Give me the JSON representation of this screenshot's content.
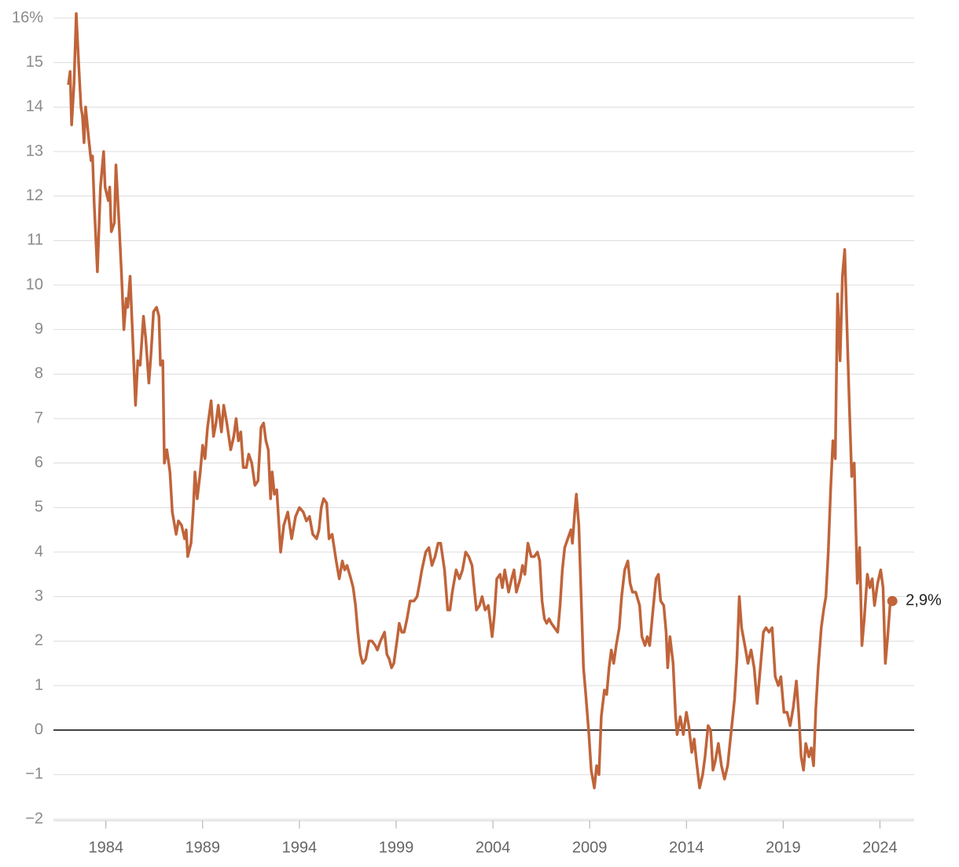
{
  "chart_data": {
    "type": "line",
    "xlim": [
      1981.29,
      2025.77
    ],
    "ylim": [
      -2,
      16
    ],
    "xticks": [
      1984,
      1989,
      1994,
      1999,
      2004,
      2009,
      2014,
      2019,
      2024
    ],
    "yticks": [
      {
        "value": -2,
        "label": "−2"
      },
      {
        "value": -1,
        "label": "−1"
      },
      0,
      1,
      2,
      3,
      4,
      5,
      6,
      7,
      8,
      9,
      10,
      11,
      12,
      13,
      14,
      15,
      {
        "value": 16,
        "label": "16%"
      }
    ],
    "grid": true,
    "x": [
      1982.06,
      1982.15,
      1982.23,
      1982.35,
      1982.47,
      1982.59,
      1982.71,
      1982.79,
      1982.87,
      1982.95,
      1983.11,
      1983.23,
      1983.31,
      1983.4,
      1983.56,
      1983.72,
      1983.88,
      1983.96,
      1984.12,
      1984.2,
      1984.28,
      1984.44,
      1984.52,
      1984.69,
      1984.81,
      1984.93,
      1985.05,
      1985.13,
      1985.25,
      1985.37,
      1985.53,
      1985.65,
      1985.77,
      1985.94,
      1986.06,
      1986.22,
      1986.34,
      1986.46,
      1986.62,
      1986.74,
      1986.82,
      1986.94,
      1987.02,
      1987.15,
      1987.31,
      1987.43,
      1987.63,
      1987.75,
      1987.91,
      1988.07,
      1988.15,
      1988.23,
      1988.4,
      1988.52,
      1988.6,
      1988.72,
      1988.88,
      1989.0,
      1989.12,
      1989.25,
      1989.44,
      1989.56,
      1989.69,
      1989.81,
      1989.97,
      1990.09,
      1990.25,
      1990.45,
      1990.61,
      1990.73,
      1990.85,
      1990.97,
      1991.1,
      1991.26,
      1991.38,
      1991.54,
      1991.7,
      1991.86,
      1992.02,
      1992.15,
      1992.27,
      1992.39,
      1992.51,
      1992.59,
      1992.71,
      1992.83,
      1993.03,
      1993.19,
      1993.4,
      1993.6,
      1993.8,
      1994.0,
      1994.2,
      1994.36,
      1994.52,
      1994.69,
      1994.89,
      1995.01,
      1995.13,
      1995.25,
      1995.41,
      1995.53,
      1995.69,
      1995.9,
      1996.06,
      1996.22,
      1996.34,
      1996.46,
      1996.66,
      1996.78,
      1996.9,
      1997.02,
      1997.15,
      1997.27,
      1997.43,
      1997.59,
      1997.75,
      1997.92,
      1998.03,
      1998.19,
      1998.4,
      1998.52,
      1998.64,
      1998.76,
      1998.88,
      1999.04,
      1999.16,
      1999.29,
      1999.41,
      1999.56,
      1999.72,
      1999.92,
      2000.08,
      2000.21,
      2000.33,
      2000.53,
      2000.69,
      2000.85,
      2001.01,
      2001.17,
      2001.3,
      2001.5,
      2001.66,
      2001.78,
      2001.9,
      2002.1,
      2002.27,
      2002.43,
      2002.59,
      2002.75,
      2002.92,
      2003.03,
      2003.15,
      2003.31,
      2003.44,
      2003.6,
      2003.76,
      2003.96,
      2004.08,
      2004.2,
      2004.37,
      2004.49,
      2004.61,
      2004.81,
      2004.97,
      2005.09,
      2005.21,
      2005.41,
      2005.53,
      2005.65,
      2005.81,
      2005.98,
      2006.14,
      2006.3,
      2006.42,
      2006.54,
      2006.66,
      2006.78,
      2006.9,
      2007.02,
      2007.18,
      2007.35,
      2007.47,
      2007.59,
      2007.71,
      2007.87,
      2008.03,
      2008.11,
      2008.23,
      2008.31,
      2008.44,
      2008.56,
      2008.68,
      2008.8,
      2008.96,
      2009.08,
      2009.24,
      2009.36,
      2009.48,
      2009.6,
      2009.76,
      2009.88,
      2010.0,
      2010.12,
      2010.24,
      2010.37,
      2010.53,
      2010.65,
      2010.81,
      2010.97,
      2011.09,
      2011.21,
      2011.38,
      2011.58,
      2011.7,
      2011.86,
      2011.98,
      2012.1,
      2012.27,
      2012.43,
      2012.55,
      2012.67,
      2012.83,
      2012.95,
      2013.03,
      2013.15,
      2013.31,
      2013.44,
      2013.52,
      2013.68,
      2013.84,
      2014.0,
      2014.12,
      2014.28,
      2014.4,
      2014.52,
      2014.68,
      2014.84,
      2014.96,
      2015.12,
      2015.25,
      2015.37,
      2015.49,
      2015.65,
      2015.81,
      2015.97,
      2016.13,
      2016.25,
      2016.37,
      2016.49,
      2016.61,
      2016.73,
      2016.85,
      2017.02,
      2017.18,
      2017.34,
      2017.5,
      2017.66,
      2017.82,
      2017.98,
      2018.11,
      2018.27,
      2018.43,
      2018.59,
      2018.75,
      2018.88,
      2019.04,
      2019.2,
      2019.36,
      2019.52,
      2019.68,
      2019.8,
      2019.93,
      2020.05,
      2020.17,
      2020.33,
      2020.45,
      2020.57,
      2020.69,
      2020.81,
      2020.97,
      2021.09,
      2021.21,
      2021.33,
      2021.45,
      2021.57,
      2021.69,
      2021.81,
      2021.94,
      2022.06,
      2022.18,
      2022.3,
      2022.42,
      2022.54,
      2022.67,
      2022.83,
      2022.95,
      2023.07,
      2023.19,
      2023.35,
      2023.48,
      2023.6,
      2023.72,
      2023.88,
      2024.04,
      2024.16,
      2024.28,
      2024.4,
      2024.52,
      2024.64
    ],
    "series": [
      {
        "color": "#c0643a",
        "values": [
          14.5,
          14.8,
          13.6,
          14.5,
          16.1,
          15.0,
          14.0,
          13.8,
          13.2,
          14.0,
          13.3,
          12.8,
          12.9,
          11.8,
          10.3,
          12.2,
          13.0,
          12.2,
          11.9,
          12.2,
          11.2,
          11.4,
          12.7,
          11.3,
          10.2,
          9.0,
          9.7,
          9.5,
          10.2,
          9.0,
          7.3,
          8.3,
          8.2,
          9.3,
          8.8,
          7.8,
          8.5,
          9.4,
          9.5,
          9.3,
          8.2,
          8.3,
          6.0,
          6.3,
          5.8,
          4.9,
          4.4,
          4.7,
          4.6,
          4.3,
          4.5,
          3.9,
          4.2,
          5.0,
          5.8,
          5.2,
          5.8,
          6.4,
          6.1,
          6.8,
          7.4,
          6.6,
          6.9,
          7.3,
          6.7,
          7.3,
          6.9,
          6.3,
          6.6,
          7.0,
          6.5,
          6.7,
          5.9,
          5.9,
          6.2,
          6.0,
          5.5,
          5.6,
          6.8,
          6.9,
          6.5,
          6.3,
          5.2,
          5.8,
          5.3,
          5.4,
          4.0,
          4.6,
          4.9,
          4.3,
          4.8,
          5.0,
          4.9,
          4.7,
          4.8,
          4.4,
          4.3,
          4.5,
          5.0,
          5.2,
          5.1,
          4.3,
          4.4,
          3.8,
          3.4,
          3.8,
          3.6,
          3.7,
          3.4,
          3.2,
          2.8,
          2.2,
          1.7,
          1.5,
          1.6,
          2.0,
          2.0,
          1.9,
          1.8,
          2.0,
          2.2,
          1.7,
          1.6,
          1.4,
          1.5,
          2.0,
          2.4,
          2.2,
          2.2,
          2.5,
          2.9,
          2.9,
          3.0,
          3.3,
          3.6,
          4.0,
          4.1,
          3.7,
          3.9,
          4.2,
          4.2,
          3.6,
          2.7,
          2.7,
          3.1,
          3.6,
          3.4,
          3.6,
          4.0,
          3.9,
          3.7,
          3.2,
          2.7,
          2.8,
          3.0,
          2.7,
          2.8,
          2.1,
          2.6,
          3.4,
          3.5,
          3.2,
          3.6,
          3.1,
          3.4,
          3.6,
          3.1,
          3.4,
          3.7,
          3.5,
          4.2,
          3.9,
          3.9,
          4.0,
          3.8,
          2.9,
          2.5,
          2.4,
          2.5,
          2.4,
          2.3,
          2.2,
          2.8,
          3.6,
          4.1,
          4.3,
          4.5,
          4.2,
          4.9,
          5.3,
          4.6,
          3.0,
          1.4,
          0.8,
          -0.1,
          -0.9,
          -1.3,
          -0.8,
          -1.0,
          0.3,
          0.9,
          0.8,
          1.4,
          1.8,
          1.5,
          1.9,
          2.3,
          3.0,
          3.6,
          3.8,
          3.3,
          3.1,
          3.1,
          2.8,
          2.1,
          1.9,
          2.1,
          1.9,
          2.7,
          3.4,
          3.5,
          2.9,
          2.8,
          2.2,
          1.4,
          2.1,
          1.5,
          0.3,
          -0.1,
          0.3,
          -0.1,
          0.4,
          0.1,
          -0.5,
          -0.2,
          -0.7,
          -1.3,
          -1.0,
          -0.6,
          0.1,
          0.0,
          -0.9,
          -0.7,
          -0.3,
          -0.8,
          -1.1,
          -0.8,
          -0.3,
          0.2,
          0.7,
          1.6,
          3.0,
          2.3,
          1.9,
          1.5,
          1.8,
          1.4,
          0.6,
          1.4,
          2.2,
          2.3,
          2.2,
          2.3,
          1.2,
          1.0,
          1.2,
          0.4,
          0.4,
          0.1,
          0.5,
          1.1,
          0.4,
          -0.6,
          -0.9,
          -0.3,
          -0.6,
          -0.4,
          -0.8,
          0.5,
          1.4,
          2.3,
          2.7,
          3.0,
          4.0,
          5.4,
          6.5,
          6.1,
          9.8,
          8.3,
          10.2,
          10.8,
          9.0,
          7.3,
          5.7,
          6.0,
          3.3,
          4.1,
          1.9,
          2.5,
          3.5,
          3.2,
          3.4,
          2.8,
          3.3,
          3.6,
          3.2,
          1.5,
          2.1,
          2.8,
          2.9
        ]
      }
    ],
    "annotations": [
      {
        "x": 2024.64,
        "value": 2.9,
        "label": "2,9%"
      }
    ]
  }
}
